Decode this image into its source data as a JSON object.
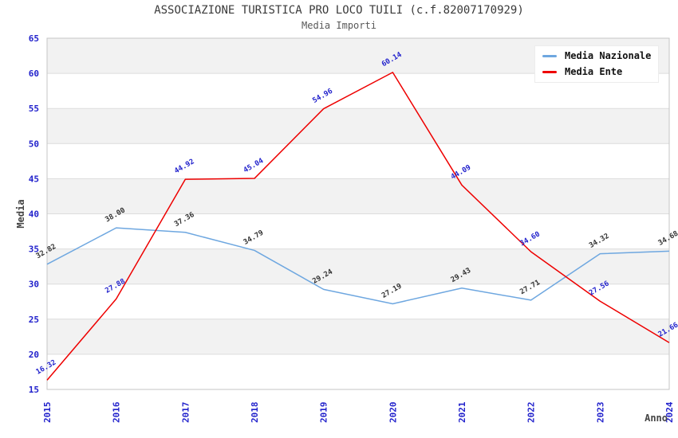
{
  "chart_data": {
    "type": "line",
    "title": "ASSOCIAZIONE TURISTICA PRO LOCO TUILI (c.f.82007170929)",
    "subtitle": "Media Importi",
    "xlabel": "Anno",
    "ylabel": "Media",
    "x": [
      2015,
      2016,
      2017,
      2018,
      2019,
      2020,
      2021,
      2022,
      2023,
      2024
    ],
    "series": [
      {
        "name": "Media Nazionale",
        "color": "#6ea7e0",
        "label_color": "#333333",
        "values": [
          32.82,
          38.0,
          37.36,
          34.79,
          29.24,
          27.19,
          29.43,
          27.71,
          34.32,
          34.68
        ]
      },
      {
        "name": "Media Ente",
        "color": "#ee0000",
        "label_color": "#2222cc",
        "values": [
          16.32,
          27.88,
          44.92,
          45.04,
          54.96,
          60.14,
          44.09,
          34.6,
          27.56,
          21.66
        ]
      }
    ],
    "ylim": [
      15,
      65
    ],
    "ytick_step": 5,
    "grid": "horizontal-bands-alternating",
    "band_color": "#f2f2f2",
    "gridline_color": "#dcdcdc",
    "axis_line_color": "#c6c6c6",
    "tick_label_color": "#2222cc",
    "axis_title_color": "#444444",
    "data_label_rotation": -30,
    "x_tick_rotation": -90,
    "legend_position": "top-right"
  }
}
